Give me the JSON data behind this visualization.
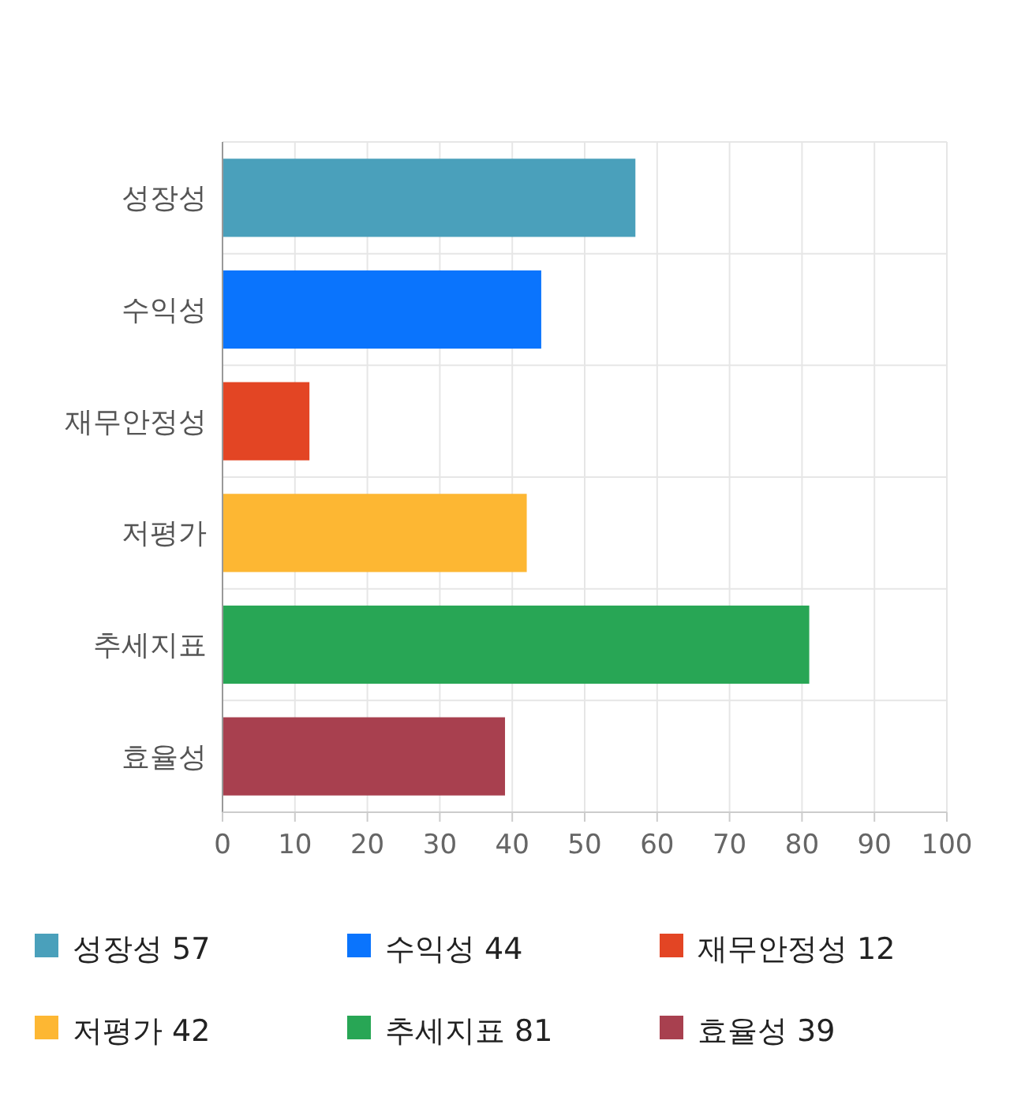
{
  "chart_data": {
    "type": "bar",
    "orientation": "horizontal",
    "stacked": true,
    "categories": [
      "성장성",
      "수익성",
      "재무안정성",
      "저평가",
      "추세지표",
      "효율성"
    ],
    "series": [
      {
        "name": "성장성 57",
        "color": "#4aa0bb",
        "values": [
          57,
          null,
          null,
          null,
          null,
          null
        ]
      },
      {
        "name": "수익성 44",
        "color": "#0a74fd",
        "values": [
          null,
          44,
          null,
          null,
          null,
          null
        ]
      },
      {
        "name": "재무안정성 12",
        "color": "#e34524",
        "values": [
          null,
          null,
          12,
          null,
          null,
          null
        ]
      },
      {
        "name": "저평가 42",
        "color": "#fdb733",
        "values": [
          null,
          null,
          null,
          42,
          null,
          null
        ]
      },
      {
        "name": "추세지표 81",
        "color": "#28a655",
        "values": [
          null,
          null,
          null,
          null,
          81,
          null
        ]
      },
      {
        "name": "효율성 39",
        "color": "#a8404f",
        "values": [
          null,
          null,
          null,
          null,
          null,
          39
        ]
      }
    ],
    "xlim": [
      0,
      100
    ],
    "xticks": [
      0,
      10,
      20,
      30,
      40,
      50,
      60,
      70,
      80,
      90,
      100
    ],
    "grid": true,
    "legend": "bottom"
  }
}
